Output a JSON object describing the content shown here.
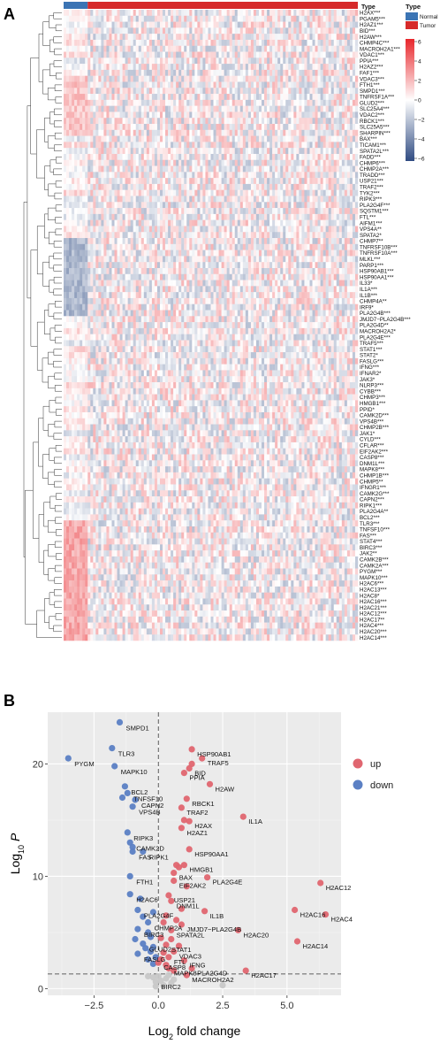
{
  "panel_a": {
    "letter": "A",
    "annotation_title": "Type",
    "legend_title": "Type",
    "legend_items": [
      {
        "label": "Normal",
        "color": "#3b74b4"
      },
      {
        "label": "Tumor",
        "color": "#d62a2a"
      }
    ],
    "scale_ticks": [
      "6",
      "4",
      "2",
      "0",
      "−2",
      "−4",
      "−6"
    ],
    "scale_colors": {
      "high": "#e8262b",
      "mid": "#ffffff",
      "low": "#2f4b82"
    },
    "normal_fraction": 0.08,
    "genes": [
      "H2AX***",
      "PGAM5***",
      "H2AZ1***",
      "BID***",
      "H2AW***",
      "CHMP4C***",
      "MACROH2A1***",
      "VDAC1***",
      "PPIA***",
      "H2AZ2***",
      "FAF1***",
      "VDAC3***",
      "FTH1***",
      "SMPD1***",
      "TNFRSF1A***",
      "GLUD2***",
      "SLC25A4***",
      "VDAC2***",
      "RBCK1***",
      "SLC25A5***",
      "SHARPIN***",
      "BAX***",
      "TICAM1***",
      "SPATA2L***",
      "FADD***",
      "CHMP6***",
      "CHMP2A***",
      "TRADD***",
      "USP21***",
      "TRAF2***",
      "TYK2***",
      "RIPK3***",
      "PLA2G4F***",
      "SQSTM1***",
      "FTL***",
      "AIFM1***",
      "VPS4A**",
      "SPATA2*",
      "CHMP7**",
      "TNFRSF10B***",
      "TNFRSF10A***",
      "MLKL***",
      "PARP1***",
      "HSP90AB1***",
      "HSP90AA1***",
      "IL33*",
      "IL1A***",
      "IL1B***",
      "CHMP4A**",
      "IRF9*",
      "PLA2G4B***",
      "JMJD7−PLA2G4B***",
      "PLA2G4D**",
      "MACROH2A2*",
      "PLA2G4E***",
      "TRAF5***",
      "STAT1***",
      "STAT2*",
      "FASLG***",
      "IFNG***",
      "IFNAR2*",
      "JAK3*",
      "NLRP3***",
      "CYBB***",
      "CHMP3***",
      "HMGB1***",
      "PPID*",
      "CAMK2D***",
      "VPS4B***",
      "CHMP2B***",
      "JAK1*",
      "CYLD***",
      "CFLAR***",
      "EIF2AK2***",
      "CASP8***",
      "DNM1L***",
      "MAPK8***",
      "CHMP1B***",
      "CHMP5**",
      "IFNGR1***",
      "CAMK2G***",
      "CAPN2***",
      "RIPK1***",
      "PLA2G4A**",
      "BCL2***",
      "TLR3***",
      "TNFSF10***",
      "FAS***",
      "STAT4***",
      "BIRC3***",
      "JAK2**",
      "CAMK2B***",
      "CAMK2A***",
      "PYGM***",
      "MAPK10***",
      "H2AC6***",
      "H2AC13***",
      "H2AC8*",
      "H2AC16***",
      "H2AC21***",
      "H2AC12***",
      "H2AC17**",
      "H2AC4***",
      "H2AC20***",
      "H2AC14***"
    ]
  },
  "panel_b": {
    "letter": "B",
    "legend": [
      {
        "label": "up",
        "color": "#e06670"
      },
      {
        "label": "down",
        "color": "#5b80c4"
      }
    ],
    "ns_color": "#c8c8c8",
    "chart_data": {
      "type": "scatter",
      "xlabel": "Log2 fold change",
      "ylabel": "Log10 P",
      "xlim": [
        -4.3,
        7.1
      ],
      "ylim": [
        -0.6,
        24.6
      ],
      "xticks": [
        "−2.5",
        "0.0",
        "2.5",
        "5.0"
      ],
      "xtick_values": [
        -2.5,
        0.0,
        2.5,
        5.0
      ],
      "yticks": [
        "0",
        "10",
        "20"
      ],
      "ytick_values": [
        0,
        10,
        20
      ],
      "thresholds": {
        "logfc": 0,
        "log10p": 1.3
      },
      "labeled_points": [
        {
          "label": "SMPD1",
          "x": -1.5,
          "y": 23.7,
          "group": "down"
        },
        {
          "label": "TLR3",
          "x": -1.8,
          "y": 21.4,
          "group": "down"
        },
        {
          "label": "PYGM",
          "x": -3.5,
          "y": 20.5,
          "group": "down"
        },
        {
          "label": "MAPK10",
          "x": -1.7,
          "y": 19.8,
          "group": "down"
        },
        {
          "label": "BCL2",
          "x": -1.3,
          "y": 18.0,
          "group": "down"
        },
        {
          "label": "TNFSF10",
          "x": -1.2,
          "y": 17.4,
          "group": "down"
        },
        {
          "label": "CAPN2",
          "x": -0.9,
          "y": 16.8,
          "group": "down"
        },
        {
          "label": "VPS4B",
          "x": -1.0,
          "y": 16.2,
          "group": "down"
        },
        {
          "label": "RIPK3",
          "x": -1.2,
          "y": 13.9,
          "group": "down"
        },
        {
          "label": "CAMK2D",
          "x": -1.1,
          "y": 13.0,
          "group": "down"
        },
        {
          "label": "FAS",
          "x": -1.0,
          "y": 12.2,
          "group": "down"
        },
        {
          "label": "RIPK1",
          "x": -0.6,
          "y": 12.2,
          "group": "down"
        },
        {
          "label": "FTH1",
          "x": -1.1,
          "y": 10.0,
          "group": "down"
        },
        {
          "label": "H2AC6",
          "x": -1.1,
          "y": 8.4,
          "group": "down"
        },
        {
          "label": "PLA2G4F",
          "x": -0.8,
          "y": 7.0,
          "group": "down"
        },
        {
          "label": "CHMP2A",
          "x": -0.4,
          "y": 5.9,
          "group": "down"
        },
        {
          "label": "BIRC3",
          "x": -0.8,
          "y": 5.3,
          "group": "down"
        },
        {
          "label": "GLUD2",
          "x": -0.6,
          "y": 4.0,
          "group": "down"
        },
        {
          "label": "FASLG",
          "x": -0.8,
          "y": 3.1,
          "group": "down"
        },
        {
          "label": "BIRC2",
          "x": -0.1,
          "y": 0.6,
          "group": "ns"
        },
        {
          "label": "HSP90AB1",
          "x": 1.3,
          "y": 21.3,
          "group": "up"
        },
        {
          "label": "TRAF5",
          "x": 1.7,
          "y": 20.5,
          "group": "up"
        },
        {
          "label": "BID",
          "x": 1.2,
          "y": 19.6,
          "group": "up"
        },
        {
          "label": "PPIA",
          "x": 1.0,
          "y": 19.2,
          "group": "up"
        },
        {
          "label": "H2AW",
          "x": 2.0,
          "y": 18.2,
          "group": "up"
        },
        {
          "label": "RBCK1",
          "x": 1.1,
          "y": 16.9,
          "group": "up"
        },
        {
          "label": "TRAF2",
          "x": 0.9,
          "y": 16.1,
          "group": "up"
        },
        {
          "label": "H2AX",
          "x": 1.2,
          "y": 14.9,
          "group": "up"
        },
        {
          "label": "H2AZ1",
          "x": 0.9,
          "y": 14.3,
          "group": "up"
        },
        {
          "label": "IL1A",
          "x": 3.3,
          "y": 15.3,
          "group": "up"
        },
        {
          "label": "HSP90AA1",
          "x": 1.2,
          "y": 12.4,
          "group": "up"
        },
        {
          "label": "HMGB1",
          "x": 1.0,
          "y": 11.0,
          "group": "up"
        },
        {
          "label": "BAX",
          "x": 0.6,
          "y": 10.3,
          "group": "up"
        },
        {
          "label": "EIF2AK2",
          "x": 0.6,
          "y": 9.6,
          "group": "up"
        },
        {
          "label": "PLA2G4E",
          "x": 1.9,
          "y": 9.9,
          "group": "up"
        },
        {
          "label": "USP21",
          "x": 0.4,
          "y": 8.3,
          "group": "up"
        },
        {
          "label": "DNM1L",
          "x": 0.5,
          "y": 7.8,
          "group": "up"
        },
        {
          "label": "IL1B",
          "x": 1.8,
          "y": 6.9,
          "group": "up"
        },
        {
          "label": "JMJD7−PLA2G4B",
          "x": 0.9,
          "y": 5.7,
          "group": "up"
        },
        {
          "label": "SPATA2L",
          "x": 0.5,
          "y": 5.2,
          "group": "up"
        },
        {
          "label": "STAT1",
          "x": 0.3,
          "y": 3.9,
          "group": "up"
        },
        {
          "label": "VDAC3",
          "x": 0.6,
          "y": 3.3,
          "group": "up"
        },
        {
          "label": "FTL",
          "x": 0.4,
          "y": 2.8,
          "group": "up"
        },
        {
          "label": "IFNG",
          "x": 1.0,
          "y": 2.5,
          "group": "up"
        },
        {
          "label": "CASP8",
          "x": 0.0,
          "y": 2.3,
          "group": "up"
        },
        {
          "label": "MAPK8",
          "x": 0.4,
          "y": 1.8,
          "group": "up"
        },
        {
          "label": "PLA2G4D",
          "x": 1.3,
          "y": 1.8,
          "group": "up"
        },
        {
          "label": "MACROH2A2",
          "x": 1.1,
          "y": 1.2,
          "group": "up"
        },
        {
          "label": "H2AC20",
          "x": 3.1,
          "y": 5.2,
          "group": "up"
        },
        {
          "label": "H2AC17",
          "x": 3.4,
          "y": 1.6,
          "group": "up"
        },
        {
          "label": "H2AC12",
          "x": 6.3,
          "y": 9.4,
          "group": "up"
        },
        {
          "label": "H2AC16",
          "x": 5.3,
          "y": 7.0,
          "group": "up"
        },
        {
          "label": "H2AC4",
          "x": 6.5,
          "y": 6.6,
          "group": "up"
        },
        {
          "label": "H2AC14",
          "x": 5.4,
          "y": 4.2,
          "group": "up"
        }
      ],
      "unlabeled_points": [
        {
          "x": -0.3,
          "y": 4.6,
          "group": "down"
        },
        {
          "x": -0.2,
          "y": 3.7,
          "group": "down"
        },
        {
          "x": -0.5,
          "y": 3.6,
          "group": "down"
        },
        {
          "x": -0.3,
          "y": 3.3,
          "group": "down"
        },
        {
          "x": -0.1,
          "y": 2.8,
          "group": "down"
        },
        {
          "x": -0.4,
          "y": 2.6,
          "group": "down"
        },
        {
          "x": -0.2,
          "y": 2.2,
          "group": "down"
        },
        {
          "x": -0.6,
          "y": 6.4,
          "group": "down"
        },
        {
          "x": -0.2,
          "y": 6.8,
          "group": "down"
        },
        {
          "x": -0.7,
          "y": 8.0,
          "group": "down"
        },
        {
          "x": -0.4,
          "y": 5.0,
          "group": "down"
        },
        {
          "x": -0.9,
          "y": 4.4,
          "group": "down"
        },
        {
          "x": -1.4,
          "y": 17.0,
          "group": "down"
        },
        {
          "x": -1.0,
          "y": 12.6,
          "group": "down"
        },
        {
          "x": 0.2,
          "y": 5.9,
          "group": "up"
        },
        {
          "x": 0.3,
          "y": 6.5,
          "group": "up"
        },
        {
          "x": 0.7,
          "y": 6.1,
          "group": "up"
        },
        {
          "x": 0.1,
          "y": 4.5,
          "group": "up"
        },
        {
          "x": 0.5,
          "y": 4.4,
          "group": "up"
        },
        {
          "x": 0.2,
          "y": 3.2,
          "group": "up"
        },
        {
          "x": 0.8,
          "y": 3.8,
          "group": "up"
        },
        {
          "x": 0.1,
          "y": 2.6,
          "group": "up"
        },
        {
          "x": 0.3,
          "y": 2.1,
          "group": "up"
        },
        {
          "x": 0.6,
          "y": 1.6,
          "group": "up"
        },
        {
          "x": 0.7,
          "y": 11.0,
          "group": "up"
        },
        {
          "x": 0.8,
          "y": 10.8,
          "group": "up"
        },
        {
          "x": 0.9,
          "y": 7.1,
          "group": "up"
        },
        {
          "x": 1.1,
          "y": 9.1,
          "group": "up"
        },
        {
          "x": 1.3,
          "y": 20.0,
          "group": "up"
        },
        {
          "x": 1.0,
          "y": 15.0,
          "group": "up"
        },
        {
          "x": -0.2,
          "y": 1.0,
          "group": "ns"
        },
        {
          "x": 0.1,
          "y": 0.7,
          "group": "ns"
        },
        {
          "x": 0.3,
          "y": 0.9,
          "group": "ns"
        },
        {
          "x": -0.4,
          "y": 1.1,
          "group": "ns"
        },
        {
          "x": 0.5,
          "y": 0.5,
          "group": "ns"
        },
        {
          "x": 0.2,
          "y": 0.3,
          "group": "ns"
        },
        {
          "x": -0.1,
          "y": 0.2,
          "group": "ns"
        },
        {
          "x": 0.6,
          "y": 0.8,
          "group": "ns"
        },
        {
          "x": 0.4,
          "y": 1.2,
          "group": "ns"
        },
        {
          "x": 2.5,
          "y": 0.3,
          "group": "ns"
        },
        {
          "x": 0.0,
          "y": 1.1,
          "group": "ns"
        }
      ]
    }
  }
}
